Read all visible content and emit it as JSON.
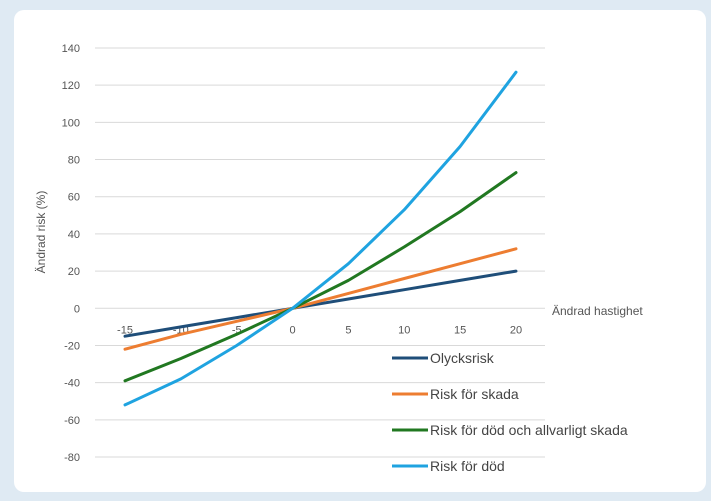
{
  "chart_data": {
    "type": "line",
    "xlabel": "Ändrad hastighet",
    "ylabel": "Ändrad risk (%)",
    "x": [
      -15,
      -10,
      -5,
      0,
      5,
      10,
      15,
      20
    ],
    "x_ticks": [
      -15,
      -10,
      -5,
      0,
      5,
      10,
      15,
      20
    ],
    "y_ticks": [
      140,
      120,
      100,
      80,
      60,
      40,
      20,
      0,
      -20,
      -40,
      -60,
      -80
    ],
    "ylim": [
      -80,
      140
    ],
    "xlim": [
      -15,
      20
    ],
    "grid": "horizontal",
    "legend_position": "bottom-right",
    "series": [
      {
        "name": "Olycksrisk",
        "color": "#1f4e79",
        "values": [
          -15,
          -10,
          -5,
          0,
          5,
          10,
          15,
          20
        ]
      },
      {
        "name": "Risk för skada",
        "color": "#ed7d31",
        "values": [
          -22,
          -14,
          -7,
          0,
          8,
          16,
          24,
          32
        ]
      },
      {
        "name": "Risk för död och allvarligt skada",
        "color": "#217821",
        "values": [
          -39,
          -27,
          -14,
          0,
          15,
          33,
          52,
          73
        ]
      },
      {
        "name": "Risk för död",
        "color": "#1fa3e0",
        "values": [
          -52,
          -38,
          -20,
          0,
          24,
          53,
          87,
          127
        ]
      }
    ]
  }
}
